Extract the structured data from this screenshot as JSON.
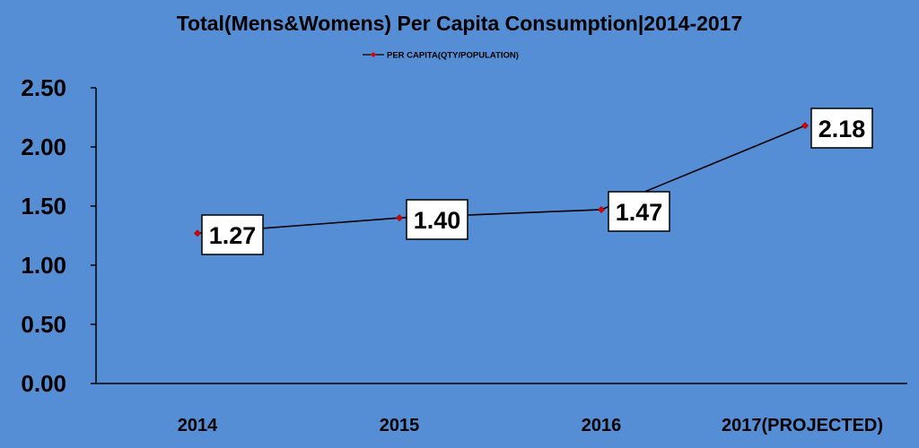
{
  "chart_data": {
    "type": "line",
    "title": "Total(Mens&Womens) Per Capita Consumption|2014-2017",
    "xlabel": "",
    "ylabel": "",
    "categories": [
      "2014",
      "2015",
      "2016",
      "2017(PROJECTED)"
    ],
    "series": [
      {
        "name": "PER CAPITA(QTY/POPULATION)",
        "values": [
          1.27,
          1.4,
          1.47,
          2.18
        ],
        "labels": [
          "1.27",
          "1.40",
          "1.47",
          "2.18"
        ],
        "color": "#000000",
        "marker_color": "#e00000"
      }
    ],
    "ylim": [
      0,
      2.5
    ],
    "yticks": [
      0,
      0.5,
      1.0,
      1.5,
      2.0,
      2.5
    ],
    "ytick_labels": [
      "0.00",
      "0.50",
      "1.00",
      "1.50",
      "2.00",
      "2.50"
    ],
    "grid": false,
    "legend_position": "top"
  },
  "colors": {
    "background": "#558ed5",
    "line": "#000000",
    "marker": "#e00000",
    "label_box": "#ffffff"
  }
}
